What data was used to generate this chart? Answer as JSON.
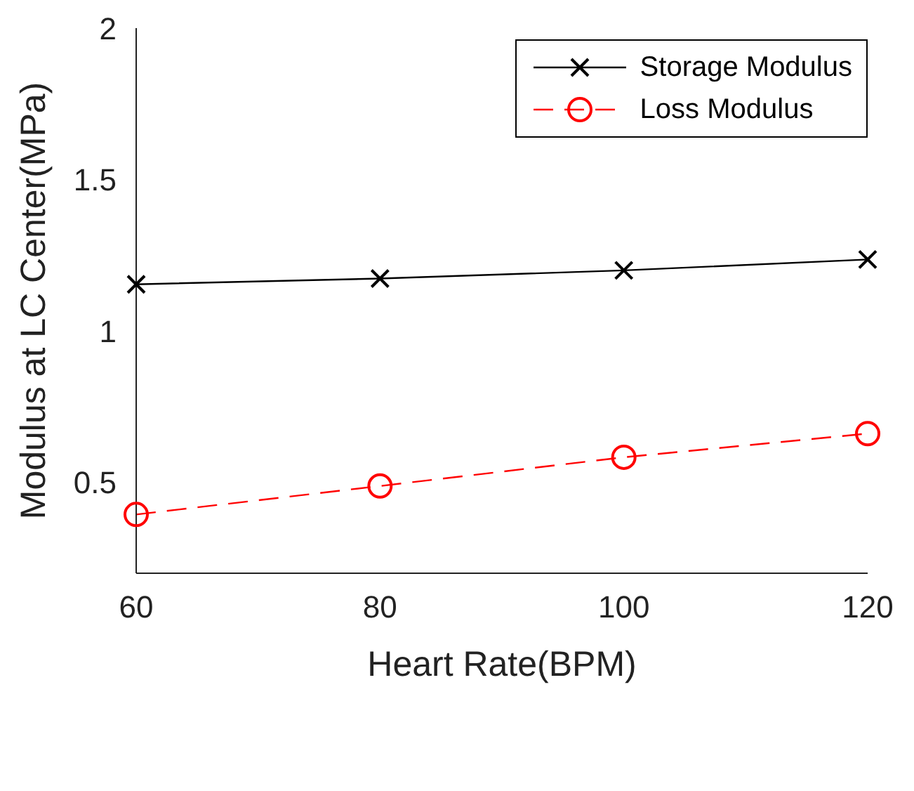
{
  "chart_data": {
    "type": "line",
    "xlabel": "Heart Rate(BPM)",
    "ylabel": "Modulus at LC Center(MPa)",
    "x": [
      60,
      80,
      100,
      120
    ],
    "series": [
      {
        "name": "Storage Modulus",
        "color": "#000000",
        "values": [
          1.154,
          1.173,
          1.2,
          1.236
        ],
        "marker": "cross",
        "line_style": "solid"
      },
      {
        "name": "Loss Modulus",
        "color": "#ff0000",
        "values": [
          0.394,
          0.488,
          0.583,
          0.661
        ],
        "marker": "circle",
        "line_style": "dashed"
      }
    ],
    "xlim": [
      60,
      120
    ],
    "xticks": [
      60,
      80,
      100,
      120
    ],
    "ylim": [
      0.2,
      2
    ],
    "yticks": [
      0.5,
      1,
      1.5,
      2
    ],
    "grid": false,
    "legend": "top right"
  }
}
